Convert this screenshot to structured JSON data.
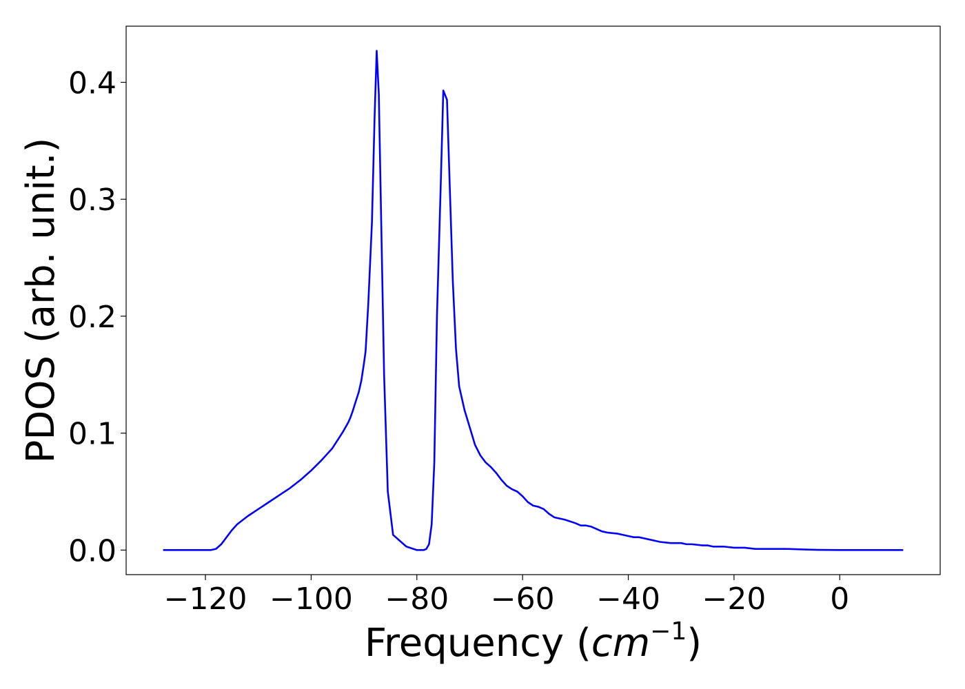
{
  "chart_data": {
    "type": "line",
    "title": "",
    "xlabel": "Frequency (",
    "xlabel_math": "cm",
    "xlabel_sup": "−1",
    "xlabel_close": ")",
    "ylabel": "PDOS (arb. unit.)",
    "xlim": [
      -135,
      19
    ],
    "ylim": [
      -0.021,
      0.448
    ],
    "grid": false,
    "xticks": [
      -120,
      -100,
      -80,
      -60,
      -40,
      -20,
      0
    ],
    "xtick_labels": [
      "−120",
      "−100",
      "−80",
      "−60",
      "−40",
      "−20",
      "0"
    ],
    "yticks": [
      0.0,
      0.1,
      0.2,
      0.3,
      0.4
    ],
    "ytick_labels": [
      "0.0",
      "0.1",
      "0.2",
      "0.3",
      "0.4"
    ],
    "series": [
      {
        "color": "#0000ff",
        "x": [
          -128,
          -124,
          -121,
          -119,
          -118,
          -117.5,
          -117,
          -116,
          -115,
          -114,
          -112,
          -110,
          -108,
          -106,
          -104,
          -102,
          -100,
          -98,
          -97,
          -96,
          -95,
          -94,
          -93.5,
          -93,
          -92.6,
          -92.2,
          -91.5,
          -91,
          -90.5,
          -90,
          -89.7,
          -89.2,
          -88.5,
          -88,
          -87.6,
          -87.2,
          -86.7,
          -86.2,
          -85.5,
          -84.5,
          -82,
          -80,
          -79.3,
          -78.7,
          -78.2,
          -77.7,
          -77.2,
          -76.7,
          -76.2,
          -75.5,
          -75,
          -74.3,
          -73.7,
          -73.2,
          -72.6,
          -72,
          -71,
          -70,
          -69,
          -68,
          -67,
          -66,
          -65,
          -64,
          -63,
          -62,
          -61,
          -60,
          -59,
          -58,
          -57,
          -56,
          -55,
          -54,
          -52,
          -50,
          -49,
          -48,
          -47,
          -46,
          -45,
          -44,
          -42,
          -40,
          -39,
          -38,
          -37,
          -36,
          -35,
          -34,
          -32,
          -30,
          -29,
          -28,
          -26,
          -25,
          -24,
          -22,
          -20,
          -18,
          -16,
          -14,
          -12,
          -10,
          -8,
          -6,
          -4,
          0,
          5,
          12
        ],
        "y": [
          0.0,
          0.0,
          0.0,
          0.0,
          0.001,
          0.003,
          0.005,
          0.011,
          0.017,
          0.022,
          0.029,
          0.035,
          0.041,
          0.047,
          0.053,
          0.06,
          0.068,
          0.077,
          0.082,
          0.087,
          0.094,
          0.101,
          0.105,
          0.109,
          0.113,
          0.118,
          0.128,
          0.135,
          0.145,
          0.16,
          0.17,
          0.21,
          0.28,
          0.37,
          0.427,
          0.39,
          0.27,
          0.15,
          0.05,
          0.013,
          0.003,
          0.0,
          0.0,
          0.0,
          0.001,
          0.005,
          0.022,
          0.075,
          0.2,
          0.31,
          0.393,
          0.385,
          0.3,
          0.23,
          0.172,
          0.14,
          0.12,
          0.105,
          0.09,
          0.081,
          0.075,
          0.071,
          0.066,
          0.06,
          0.055,
          0.052,
          0.05,
          0.046,
          0.041,
          0.038,
          0.037,
          0.035,
          0.031,
          0.028,
          0.026,
          0.023,
          0.021,
          0.021,
          0.02,
          0.018,
          0.016,
          0.015,
          0.014,
          0.012,
          0.011,
          0.011,
          0.01,
          0.009,
          0.008,
          0.007,
          0.006,
          0.006,
          0.005,
          0.005,
          0.004,
          0.004,
          0.003,
          0.003,
          0.002,
          0.002,
          0.001,
          0.001,
          0.001,
          0.001,
          0.0007,
          0.0004,
          0.0002,
          0.0,
          0.0,
          0.0
        ]
      }
    ]
  }
}
